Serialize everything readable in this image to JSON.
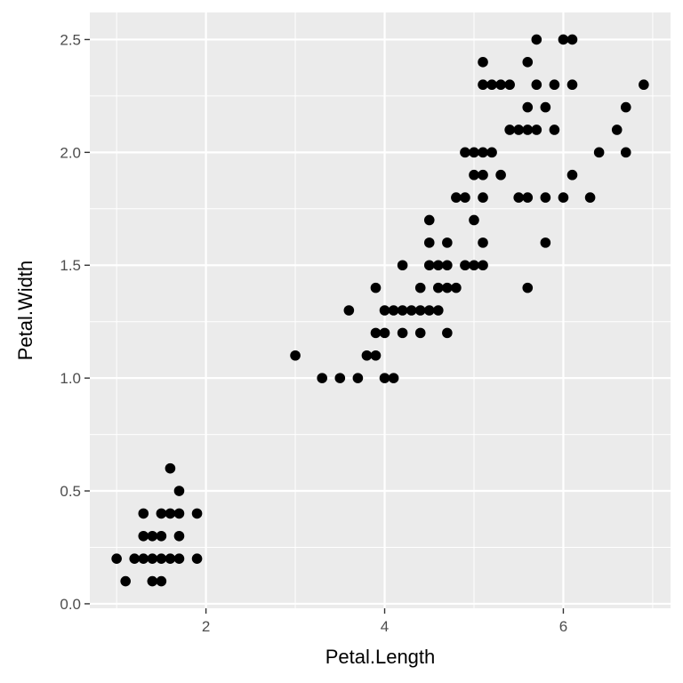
{
  "chart_data": {
    "type": "scatter",
    "xlabel": "Petal.Length",
    "ylabel": "Petal.Width",
    "xlim": [
      0.7,
      7.2
    ],
    "ylim": [
      -0.02,
      2.62
    ],
    "x_ticks": [
      2,
      4,
      6
    ],
    "x_tick_labels": [
      "2",
      "4",
      "6"
    ],
    "y_ticks": [
      0.0,
      0.5,
      1.0,
      1.5,
      2.0,
      2.5
    ],
    "y_tick_labels": [
      "0.0",
      "0.5",
      "1.0",
      "1.5",
      "2.0",
      "2.5"
    ],
    "x_minor_ticks": [
      1,
      3,
      5,
      7
    ],
    "y_minor_ticks": [
      0.25,
      0.75,
      1.25,
      1.75,
      2.25
    ],
    "grid": true,
    "colors": {
      "panel": "#ebebeb",
      "grid": "#ffffff",
      "point": "#000000"
    },
    "points": [
      {
        "x": 1.0,
        "y": 0.2
      },
      {
        "x": 1.1,
        "y": 0.1
      },
      {
        "x": 1.2,
        "y": 0.2
      },
      {
        "x": 1.3,
        "y": 0.2
      },
      {
        "x": 1.3,
        "y": 0.3
      },
      {
        "x": 1.3,
        "y": 0.4
      },
      {
        "x": 1.4,
        "y": 0.1
      },
      {
        "x": 1.4,
        "y": 0.2
      },
      {
        "x": 1.4,
        "y": 0.3
      },
      {
        "x": 1.5,
        "y": 0.1
      },
      {
        "x": 1.5,
        "y": 0.2
      },
      {
        "x": 1.5,
        "y": 0.3
      },
      {
        "x": 1.5,
        "y": 0.4
      },
      {
        "x": 1.6,
        "y": 0.2
      },
      {
        "x": 1.6,
        "y": 0.4
      },
      {
        "x": 1.6,
        "y": 0.6
      },
      {
        "x": 1.7,
        "y": 0.2
      },
      {
        "x": 1.7,
        "y": 0.3
      },
      {
        "x": 1.7,
        "y": 0.4
      },
      {
        "x": 1.7,
        "y": 0.5
      },
      {
        "x": 1.9,
        "y": 0.2
      },
      {
        "x": 1.9,
        "y": 0.4
      },
      {
        "x": 3.0,
        "y": 1.1
      },
      {
        "x": 3.3,
        "y": 1.0
      },
      {
        "x": 3.5,
        "y": 1.0
      },
      {
        "x": 3.6,
        "y": 1.3
      },
      {
        "x": 3.7,
        "y": 1.0
      },
      {
        "x": 3.8,
        "y": 1.1
      },
      {
        "x": 3.9,
        "y": 1.1
      },
      {
        "x": 3.9,
        "y": 1.2
      },
      {
        "x": 3.9,
        "y": 1.4
      },
      {
        "x": 4.0,
        "y": 1.0
      },
      {
        "x": 4.0,
        "y": 1.2
      },
      {
        "x": 4.0,
        "y": 1.3
      },
      {
        "x": 4.1,
        "y": 1.0
      },
      {
        "x": 4.1,
        "y": 1.3
      },
      {
        "x": 4.2,
        "y": 1.2
      },
      {
        "x": 4.2,
        "y": 1.3
      },
      {
        "x": 4.2,
        "y": 1.5
      },
      {
        "x": 4.3,
        "y": 1.3
      },
      {
        "x": 4.4,
        "y": 1.2
      },
      {
        "x": 4.4,
        "y": 1.3
      },
      {
        "x": 4.4,
        "y": 1.4
      },
      {
        "x": 4.5,
        "y": 1.3
      },
      {
        "x": 4.5,
        "y": 1.5
      },
      {
        "x": 4.5,
        "y": 1.6
      },
      {
        "x": 4.5,
        "y": 1.7
      },
      {
        "x": 4.6,
        "y": 1.3
      },
      {
        "x": 4.6,
        "y": 1.4
      },
      {
        "x": 4.6,
        "y": 1.5
      },
      {
        "x": 4.7,
        "y": 1.2
      },
      {
        "x": 4.7,
        "y": 1.4
      },
      {
        "x": 4.7,
        "y": 1.5
      },
      {
        "x": 4.7,
        "y": 1.6
      },
      {
        "x": 4.8,
        "y": 1.4
      },
      {
        "x": 4.8,
        "y": 1.8
      },
      {
        "x": 4.9,
        "y": 1.5
      },
      {
        "x": 4.9,
        "y": 1.8
      },
      {
        "x": 4.9,
        "y": 2.0
      },
      {
        "x": 5.0,
        "y": 1.5
      },
      {
        "x": 5.0,
        "y": 1.7
      },
      {
        "x": 5.0,
        "y": 1.9
      },
      {
        "x": 5.0,
        "y": 2.0
      },
      {
        "x": 5.1,
        "y": 1.5
      },
      {
        "x": 5.1,
        "y": 1.6
      },
      {
        "x": 5.1,
        "y": 1.8
      },
      {
        "x": 5.1,
        "y": 1.9
      },
      {
        "x": 5.1,
        "y": 2.0
      },
      {
        "x": 5.1,
        "y": 2.3
      },
      {
        "x": 5.1,
        "y": 2.4
      },
      {
        "x": 5.2,
        "y": 2.0
      },
      {
        "x": 5.2,
        "y": 2.3
      },
      {
        "x": 5.3,
        "y": 1.9
      },
      {
        "x": 5.3,
        "y": 2.3
      },
      {
        "x": 5.4,
        "y": 2.1
      },
      {
        "x": 5.4,
        "y": 2.3
      },
      {
        "x": 5.5,
        "y": 1.8
      },
      {
        "x": 5.5,
        "y": 2.1
      },
      {
        "x": 5.6,
        "y": 1.4
      },
      {
        "x": 5.6,
        "y": 1.8
      },
      {
        "x": 5.6,
        "y": 2.1
      },
      {
        "x": 5.6,
        "y": 2.2
      },
      {
        "x": 5.6,
        "y": 2.4
      },
      {
        "x": 5.7,
        "y": 2.1
      },
      {
        "x": 5.7,
        "y": 2.3
      },
      {
        "x": 5.7,
        "y": 2.5
      },
      {
        "x": 5.8,
        "y": 1.6
      },
      {
        "x": 5.8,
        "y": 1.8
      },
      {
        "x": 5.8,
        "y": 2.2
      },
      {
        "x": 5.9,
        "y": 2.1
      },
      {
        "x": 5.9,
        "y": 2.3
      },
      {
        "x": 6.0,
        "y": 1.8
      },
      {
        "x": 6.0,
        "y": 2.5
      },
      {
        "x": 6.1,
        "y": 1.9
      },
      {
        "x": 6.1,
        "y": 2.3
      },
      {
        "x": 6.1,
        "y": 2.5
      },
      {
        "x": 6.3,
        "y": 1.8
      },
      {
        "x": 6.4,
        "y": 2.0
      },
      {
        "x": 6.6,
        "y": 2.1
      },
      {
        "x": 6.7,
        "y": 2.0
      },
      {
        "x": 6.7,
        "y": 2.2
      },
      {
        "x": 6.9,
        "y": 2.3
      }
    ]
  }
}
